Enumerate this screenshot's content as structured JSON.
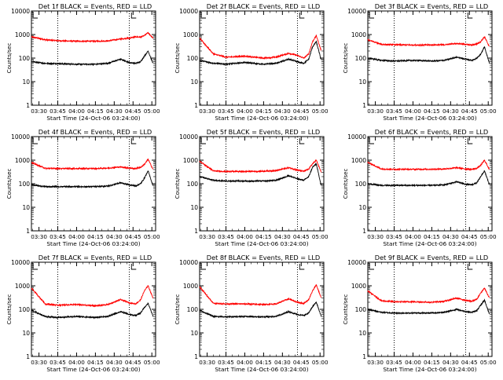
{
  "chart_data": [
    {
      "type": "line",
      "title": "Det 1f BLACK = Events, RED = LLD",
      "xlabel": "Start Time (24-Oct-06 03:24:00)",
      "ylabel": "Counts/sec",
      "y_scale": "log",
      "ylim": [
        1,
        10000
      ],
      "x_ticks": [
        "03:30",
        "03:45",
        "04:00",
        "04:15",
        "04:30",
        "04:45",
        "05:00"
      ],
      "y_ticks": [
        "1",
        "10",
        "100",
        "1000",
        "10000"
      ],
      "series": [
        {
          "name": "LLD",
          "color": "#ff0000",
          "x": [
            "03:24",
            "03:35",
            "03:45",
            "04:00",
            "04:15",
            "04:25",
            "04:35",
            "04:42",
            "04:47",
            "04:51",
            "04:54",
            "04:57",
            "05:01"
          ],
          "y": [
            800,
            600,
            550,
            520,
            520,
            540,
            650,
            700,
            800,
            780,
            900,
            1200,
            700
          ]
        },
        {
          "name": "Events",
          "color": "#000000",
          "x": [
            "03:24",
            "03:35",
            "03:45",
            "04:00",
            "04:15",
            "04:25",
            "04:35",
            "04:42",
            "04:47",
            "04:51",
            "04:54",
            "04:57",
            "05:01"
          ],
          "y": [
            70,
            60,
            58,
            55,
            55,
            60,
            90,
            65,
            60,
            70,
            120,
            200,
            60
          ]
        }
      ]
    },
    {
      "type": "line",
      "title": "Det 2f BLACK = Events, RED = LLD",
      "xlabel": "Start Time (24-Oct-06 03:24:00)",
      "ylabel": "Counts/sec",
      "y_scale": "log",
      "ylim": [
        1,
        10000
      ],
      "x_ticks": [
        "03:30",
        "03:45",
        "04:00",
        "04:15",
        "04:30",
        "04:45",
        "05:00"
      ],
      "y_ticks": [
        "1",
        "10",
        "100",
        "1000",
        "10000"
      ],
      "series": [
        {
          "name": "LLD",
          "color": "#ff0000",
          "x": [
            "03:24",
            "03:35",
            "03:45",
            "04:00",
            "04:15",
            "04:25",
            "04:35",
            "04:42",
            "04:47",
            "04:51",
            "04:54",
            "04:57",
            "05:01"
          ],
          "y": [
            700,
            150,
            110,
            120,
            100,
            110,
            160,
            130,
            100,
            150,
            500,
            900,
            200
          ]
        },
        {
          "name": "Events",
          "color": "#000000",
          "x": [
            "03:24",
            "03:35",
            "03:45",
            "04:00",
            "04:15",
            "04:25",
            "04:35",
            "04:42",
            "04:47",
            "04:51",
            "04:54",
            "04:57",
            "05:01"
          ],
          "y": [
            80,
            60,
            55,
            65,
            55,
            60,
            90,
            70,
            60,
            90,
            300,
            500,
            80
          ]
        }
      ]
    },
    {
      "type": "line",
      "title": "Det 3f BLACK = Events, RED = LLD",
      "xlabel": "Start Time (24-Oct-06 03:24:00)",
      "ylabel": "Counts/sec",
      "y_scale": "log",
      "ylim": [
        1,
        10000
      ],
      "x_ticks": [
        "03:30",
        "03:45",
        "04:00",
        "04:15",
        "04:30",
        "04:45",
        "05:00"
      ],
      "y_ticks": [
        "1",
        "10",
        "100",
        "1000",
        "10000"
      ],
      "series": [
        {
          "name": "LLD",
          "color": "#ff0000",
          "x": [
            "03:24",
            "03:35",
            "03:45",
            "04:00",
            "04:15",
            "04:25",
            "04:35",
            "04:42",
            "04:47",
            "04:51",
            "04:54",
            "04:57",
            "05:01"
          ],
          "y": [
            600,
            380,
            370,
            360,
            360,
            370,
            420,
            380,
            360,
            400,
            500,
            800,
            300
          ]
        },
        {
          "name": "Events",
          "color": "#000000",
          "x": [
            "03:24",
            "03:35",
            "03:45",
            "04:00",
            "04:15",
            "04:25",
            "04:35",
            "04:42",
            "04:47",
            "04:51",
            "04:54",
            "04:57",
            "05:01"
          ],
          "y": [
            100,
            80,
            75,
            80,
            75,
            80,
            110,
            90,
            80,
            100,
            150,
            300,
            60
          ]
        }
      ]
    },
    {
      "type": "line",
      "title": "Det 4f BLACK = Events, RED = LLD",
      "xlabel": "Start Time (24-Oct-06 03:24:00)",
      "ylabel": "Counts/sec",
      "y_scale": "log",
      "ylim": [
        1,
        10000
      ],
      "x_ticks": [
        "03:30",
        "03:45",
        "04:00",
        "04:15",
        "04:30",
        "04:45",
        "05:00"
      ],
      "y_ticks": [
        "1",
        "10",
        "100",
        "1000",
        "10000"
      ],
      "series": [
        {
          "name": "LLD",
          "color": "#ff0000",
          "x": [
            "03:24",
            "03:35",
            "03:45",
            "04:00",
            "04:15",
            "04:25",
            "04:35",
            "04:42",
            "04:47",
            "04:51",
            "04:54",
            "04:57",
            "05:01"
          ],
          "y": [
            800,
            450,
            440,
            440,
            440,
            460,
            520,
            460,
            440,
            500,
            650,
            1100,
            400
          ]
        },
        {
          "name": "Events",
          "color": "#000000",
          "x": [
            "03:24",
            "03:35",
            "03:45",
            "04:00",
            "04:15",
            "04:25",
            "04:35",
            "04:42",
            "04:47",
            "04:51",
            "04:54",
            "04:57",
            "05:01"
          ],
          "y": [
            90,
            75,
            75,
            75,
            75,
            80,
            110,
            90,
            80,
            100,
            170,
            350,
            80
          ]
        }
      ]
    },
    {
      "type": "line",
      "title": "Det 5f BLACK = Events, RED = LLD",
      "xlabel": "Start Time (24-Oct-06 03:24:00)",
      "ylabel": "Counts/sec",
      "y_scale": "log",
      "ylim": [
        1,
        10000
      ],
      "x_ticks": [
        "03:30",
        "03:45",
        "04:00",
        "04:15",
        "04:30",
        "04:45",
        "05:00"
      ],
      "y_ticks": [
        "1",
        "10",
        "100",
        "1000",
        "10000"
      ],
      "series": [
        {
          "name": "LLD",
          "color": "#ff0000",
          "x": [
            "03:24",
            "03:35",
            "03:45",
            "04:00",
            "04:15",
            "04:25",
            "04:35",
            "04:42",
            "04:47",
            "04:51",
            "04:54",
            "04:57",
            "05:01"
          ],
          "y": [
            900,
            350,
            330,
            330,
            340,
            360,
            480,
            380,
            340,
            420,
            700,
            1000,
            300
          ]
        },
        {
          "name": "Events",
          "color": "#000000",
          "x": [
            "03:24",
            "03:35",
            "03:45",
            "04:00",
            "04:15",
            "04:25",
            "04:35",
            "04:42",
            "04:47",
            "04:51",
            "04:54",
            "04:57",
            "05:01"
          ],
          "y": [
            200,
            140,
            130,
            130,
            130,
            140,
            220,
            160,
            140,
            200,
            500,
            700,
            80
          ]
        }
      ]
    },
    {
      "type": "line",
      "title": "Det 6f BLACK = Events, RED = LLD",
      "xlabel": "Start Time (24-Oct-06 03:24:00)",
      "ylabel": "Counts/sec",
      "y_scale": "log",
      "ylim": [
        1,
        10000
      ],
      "x_ticks": [
        "03:30",
        "03:45",
        "04:00",
        "04:15",
        "04:30",
        "04:45",
        "05:00"
      ],
      "y_ticks": [
        "1",
        "10",
        "100",
        "1000",
        "10000"
      ],
      "series": [
        {
          "name": "LLD",
          "color": "#ff0000",
          "x": [
            "03:24",
            "03:35",
            "03:45",
            "04:00",
            "04:15",
            "04:25",
            "04:35",
            "04:42",
            "04:47",
            "04:51",
            "04:54",
            "04:57",
            "05:01"
          ],
          "y": [
            800,
            420,
            410,
            410,
            410,
            420,
            480,
            420,
            410,
            450,
            600,
            1000,
            400
          ]
        },
        {
          "name": "Events",
          "color": "#000000",
          "x": [
            "03:24",
            "03:35",
            "03:45",
            "04:00",
            "04:15",
            "04:25",
            "04:35",
            "04:42",
            "04:47",
            "04:51",
            "04:54",
            "04:57",
            "05:01"
          ],
          "y": [
            100,
            85,
            85,
            85,
            85,
            90,
            120,
            95,
            90,
            110,
            200,
            350,
            90
          ]
        }
      ]
    },
    {
      "type": "line",
      "title": "Det 7f BLACK = Events, RED = LLD",
      "xlabel": "Start Time (24-Oct-06 03:24:00)",
      "ylabel": "Counts/sec",
      "y_scale": "log",
      "ylim": [
        1,
        10000
      ],
      "x_ticks": [
        "03:30",
        "03:45",
        "04:00",
        "04:15",
        "04:30",
        "04:45",
        "05:00"
      ],
      "y_ticks": [
        "1",
        "10",
        "100",
        "1000",
        "10000"
      ],
      "series": [
        {
          "name": "LLD",
          "color": "#ff0000",
          "x": [
            "03:24",
            "03:35",
            "03:45",
            "04:00",
            "04:15",
            "04:25",
            "04:35",
            "04:42",
            "04:47",
            "04:51",
            "04:54",
            "04:57",
            "05:01"
          ],
          "y": [
            800,
            170,
            150,
            160,
            140,
            160,
            260,
            190,
            170,
            250,
            600,
            1000,
            300
          ]
        },
        {
          "name": "Events",
          "color": "#000000",
          "x": [
            "03:24",
            "03:35",
            "03:45",
            "04:00",
            "04:15",
            "04:25",
            "04:35",
            "04:42",
            "04:47",
            "04:51",
            "04:54",
            "04:57",
            "05:01"
          ],
          "y": [
            90,
            50,
            45,
            50,
            45,
            50,
            80,
            60,
            55,
            70,
            120,
            180,
            50
          ]
        }
      ]
    },
    {
      "type": "line",
      "title": "Det 8f BLACK = Events, RED = LLD",
      "xlabel": "Start Time (24-Oct-06 03:24:00)",
      "ylabel": "Counts/sec",
      "y_scale": "log",
      "ylim": [
        1,
        10000
      ],
      "x_ticks": [
        "03:30",
        "03:45",
        "04:00",
        "04:15",
        "04:30",
        "04:45",
        "05:00"
      ],
      "y_ticks": [
        "1",
        "10",
        "100",
        "1000",
        "10000"
      ],
      "series": [
        {
          "name": "LLD",
          "color": "#ff0000",
          "x": [
            "03:24",
            "03:35",
            "03:45",
            "04:00",
            "04:15",
            "04:25",
            "04:35",
            "04:42",
            "04:47",
            "04:51",
            "04:54",
            "04:57",
            "05:01"
          ],
          "y": [
            900,
            180,
            170,
            170,
            160,
            170,
            280,
            200,
            180,
            260,
            600,
            1100,
            300
          ]
        },
        {
          "name": "Events",
          "color": "#000000",
          "x": [
            "03:24",
            "03:35",
            "03:45",
            "04:00",
            "04:15",
            "04:25",
            "04:35",
            "04:42",
            "04:47",
            "04:51",
            "04:54",
            "04:57",
            "05:01"
          ],
          "y": [
            90,
            50,
            48,
            50,
            48,
            50,
            80,
            60,
            55,
            70,
            130,
            200,
            50
          ]
        }
      ]
    },
    {
      "type": "line",
      "title": "Det 9f BLACK = Events, RED = LLD",
      "xlabel": "Start Time (24-Oct-06 03:24:00)",
      "ylabel": "Counts/sec",
      "y_scale": "log",
      "ylim": [
        1,
        10000
      ],
      "x_ticks": [
        "03:30",
        "03:45",
        "04:00",
        "04:15",
        "04:30",
        "04:45",
        "05:00"
      ],
      "y_ticks": [
        "1",
        "10",
        "100",
        "1000",
        "10000"
      ],
      "series": [
        {
          "name": "LLD",
          "color": "#ff0000",
          "x": [
            "03:24",
            "03:35",
            "03:45",
            "04:00",
            "04:15",
            "04:25",
            "04:35",
            "04:42",
            "04:47",
            "04:51",
            "04:54",
            "04:57",
            "05:01"
          ],
          "y": [
            600,
            230,
            210,
            210,
            200,
            220,
            300,
            240,
            220,
            270,
            500,
            800,
            300
          ]
        },
        {
          "name": "Events",
          "color": "#000000",
          "x": [
            "03:24",
            "03:35",
            "03:45",
            "04:00",
            "04:15",
            "04:25",
            "04:35",
            "04:42",
            "04:47",
            "04:51",
            "04:54",
            "04:57",
            "05:01"
          ],
          "y": [
            100,
            75,
            70,
            70,
            70,
            75,
            100,
            80,
            75,
            90,
            150,
            250,
            60
          ]
        }
      ]
    }
  ]
}
